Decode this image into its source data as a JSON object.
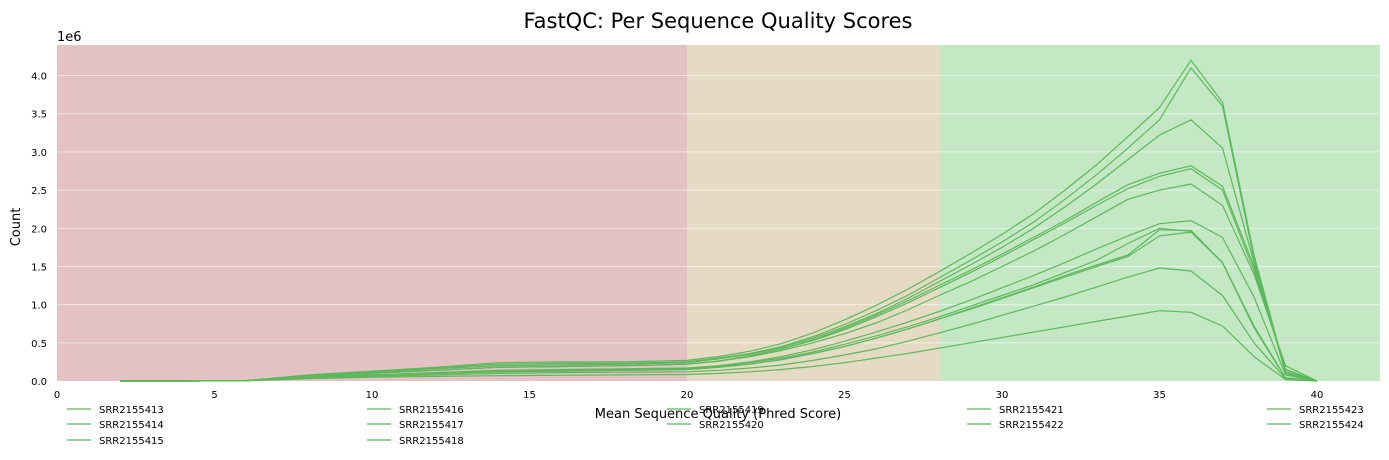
{
  "chart_data": {
    "type": "line",
    "title": "FastQC: Per Sequence Quality Scores",
    "xlabel": "Mean Sequence Quality (Phred Score)",
    "ylabel": "Count",
    "y_multiplier_label": "1e6",
    "xlim": [
      0,
      42
    ],
    "ylim": [
      0,
      4.4
    ],
    "xticks": [
      0,
      5,
      10,
      15,
      20,
      25,
      30,
      35,
      40
    ],
    "yticks": [
      0.0,
      0.5,
      1.0,
      1.5,
      2.0,
      2.5,
      3.0,
      3.5,
      4.0
    ],
    "ytick_labels": [
      "0.0",
      "0.5",
      "1.0",
      "1.5",
      "2.0",
      "2.5",
      "3.0",
      "3.5",
      "4.0"
    ],
    "grid": true,
    "legend_position": "bottom",
    "zones": [
      {
        "from": 0,
        "to": 20,
        "color": "#e4c2c3"
      },
      {
        "from": 20,
        "to": 28,
        "color": "#e5dbc4"
      },
      {
        "from": 28,
        "to": 42,
        "color": "#c4e8c4"
      }
    ],
    "line_color": "#5cb85c",
    "x": [
      2,
      4,
      6,
      8,
      10,
      12,
      14,
      16,
      18,
      20,
      21,
      22,
      23,
      24,
      25,
      26,
      27,
      28,
      29,
      30,
      31,
      32,
      33,
      34,
      35,
      36,
      37,
      38,
      39,
      40
    ],
    "series": [
      {
        "name": "SRR2155413",
        "values": [
          0,
          0,
          0.005,
          0.06,
          0.1,
          0.14,
          0.18,
          0.19,
          0.2,
          0.22,
          0.26,
          0.32,
          0.4,
          0.5,
          0.62,
          0.76,
          0.93,
          1.12,
          1.3,
          1.5,
          1.7,
          1.92,
          2.15,
          2.38,
          2.5,
          2.58,
          2.3,
          1.4,
          0.2,
          0.0
        ]
      },
      {
        "name": "SRR2155414",
        "values": [
          0,
          0,
          0.005,
          0.07,
          0.12,
          0.17,
          0.22,
          0.23,
          0.23,
          0.25,
          0.3,
          0.36,
          0.45,
          0.58,
          0.74,
          0.92,
          1.12,
          1.35,
          1.58,
          1.82,
          2.08,
          2.38,
          2.7,
          3.05,
          3.42,
          4.1,
          3.6,
          1.6,
          0.1,
          0.0
        ]
      },
      {
        "name": "SRR2155415",
        "values": [
          0,
          0,
          0.004,
          0.04,
          0.07,
          0.1,
          0.12,
          0.13,
          0.14,
          0.15,
          0.18,
          0.22,
          0.28,
          0.36,
          0.45,
          0.56,
          0.68,
          0.81,
          0.94,
          1.08,
          1.22,
          1.36,
          1.5,
          1.63,
          1.9,
          1.95,
          1.55,
          0.7,
          0.04,
          0.0
        ]
      },
      {
        "name": "SRR2155416",
        "values": [
          0,
          0,
          0.005,
          0.06,
          0.1,
          0.14,
          0.18,
          0.19,
          0.2,
          0.22,
          0.26,
          0.33,
          0.42,
          0.54,
          0.69,
          0.86,
          1.05,
          1.25,
          1.45,
          1.66,
          1.88,
          2.1,
          2.34,
          2.57,
          2.72,
          2.82,
          2.55,
          1.5,
          0.15,
          0.0
        ]
      },
      {
        "name": "SRR2155417",
        "values": [
          0,
          0,
          0.005,
          0.06,
          0.1,
          0.14,
          0.18,
          0.19,
          0.2,
          0.22,
          0.26,
          0.33,
          0.42,
          0.53,
          0.67,
          0.84,
          1.02,
          1.22,
          1.42,
          1.63,
          1.85,
          2.07,
          2.3,
          2.52,
          2.68,
          2.78,
          2.5,
          1.45,
          0.15,
          0.0
        ]
      },
      {
        "name": "SRR2155418",
        "values": [
          0,
          0,
          0.005,
          0.065,
          0.11,
          0.16,
          0.2,
          0.21,
          0.22,
          0.24,
          0.29,
          0.35,
          0.44,
          0.56,
          0.71,
          0.88,
          1.08,
          1.3,
          1.52,
          1.75,
          2.0,
          2.28,
          2.58,
          2.9,
          3.22,
          3.42,
          3.05,
          1.55,
          0.12,
          0.0
        ]
      },
      {
        "name": "SRR2155419",
        "values": [
          0,
          0,
          0.005,
          0.08,
          0.13,
          0.18,
          0.24,
          0.25,
          0.25,
          0.27,
          0.32,
          0.39,
          0.49,
          0.63,
          0.8,
          0.99,
          1.2,
          1.43,
          1.67,
          1.92,
          2.19,
          2.5,
          2.83,
          3.2,
          3.58,
          4.2,
          3.65,
          1.65,
          0.12,
          0.0
        ]
      },
      {
        "name": "SRR2155420",
        "values": [
          0,
          0,
          0.004,
          0.04,
          0.07,
          0.1,
          0.12,
          0.13,
          0.14,
          0.15,
          0.18,
          0.22,
          0.28,
          0.36,
          0.45,
          0.56,
          0.68,
          0.81,
          0.95,
          1.09,
          1.23,
          1.38,
          1.52,
          1.65,
          1.98,
          1.97,
          1.55,
          0.7,
          0.04,
          0.0
        ]
      },
      {
        "name": "SRR2155421",
        "values": [
          0,
          0,
          0.003,
          0.03,
          0.05,
          0.06,
          0.07,
          0.075,
          0.08,
          0.085,
          0.1,
          0.12,
          0.15,
          0.19,
          0.24,
          0.3,
          0.36,
          0.43,
          0.5,
          0.57,
          0.64,
          0.71,
          0.78,
          0.85,
          0.92,
          0.9,
          0.72,
          0.32,
          0.02,
          0.0
        ]
      },
      {
        "name": "SRR2155422",
        "values": [
          0,
          0,
          0.004,
          0.045,
          0.075,
          0.1,
          0.13,
          0.14,
          0.15,
          0.16,
          0.19,
          0.24,
          0.3,
          0.38,
          0.48,
          0.59,
          0.71,
          0.84,
          0.98,
          1.12,
          1.26,
          1.42,
          1.58,
          1.8,
          2.0,
          1.96,
          1.55,
          0.72,
          0.04,
          0.0
        ]
      },
      {
        "name": "SRR2155423",
        "values": [
          0,
          0,
          0.004,
          0.04,
          0.06,
          0.08,
          0.1,
          0.11,
          0.115,
          0.12,
          0.14,
          0.17,
          0.21,
          0.27,
          0.34,
          0.42,
          0.52,
          0.63,
          0.74,
          0.86,
          0.98,
          1.1,
          1.23,
          1.36,
          1.48,
          1.44,
          1.12,
          0.5,
          0.03,
          0.0
        ]
      },
      {
        "name": "SRR2155424",
        "values": [
          0,
          0,
          0.004,
          0.05,
          0.08,
          0.11,
          0.14,
          0.15,
          0.16,
          0.17,
          0.2,
          0.25,
          0.32,
          0.41,
          0.52,
          0.64,
          0.77,
          0.91,
          1.06,
          1.22,
          1.38,
          1.55,
          1.73,
          1.9,
          2.06,
          2.1,
          1.88,
          1.1,
          0.08,
          0.0
        ]
      }
    ]
  }
}
